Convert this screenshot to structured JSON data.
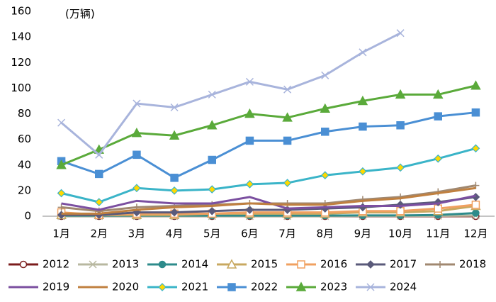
{
  "chart_data": {
    "type": "line",
    "annotation": "(万辆)",
    "categories": [
      "1月",
      "2月",
      "3月",
      "4月",
      "5月",
      "6月",
      "7月",
      "8月",
      "9月",
      "10月",
      "11月",
      "12月"
    ],
    "ylim": [
      0,
      160
    ],
    "yticks": [
      0,
      20,
      40,
      60,
      80,
      100,
      120,
      140,
      160
    ],
    "series": [
      {
        "name": "2012",
        "color": "#7b1c1c",
        "marker": "circle-open",
        "values": [
          0,
          0,
          0,
          0,
          0,
          0,
          0,
          0,
          0,
          0,
          0,
          0
        ]
      },
      {
        "name": "2013",
        "color": "#b8b8a0",
        "marker": "x",
        "values": [
          0.1,
          0.1,
          0.1,
          0.1,
          0.1,
          0.1,
          0.1,
          0.1,
          0.2,
          0.2,
          0.3,
          0.5
        ]
      },
      {
        "name": "2014",
        "color": "#2e8b8b",
        "marker": "circle",
        "values": [
          0.5,
          0.5,
          0.5,
          0.5,
          0.5,
          0.5,
          0.5,
          0.5,
          0.6,
          0.6,
          1,
          2.5
        ]
      },
      {
        "name": "2015",
        "color": "#c8a860",
        "marker": "triangle-open",
        "values": [
          1,
          1,
          1,
          1,
          2,
          2,
          2,
          2,
          3,
          3,
          4,
          8
        ]
      },
      {
        "name": "2016",
        "color": "#f0a060",
        "marker": "square-open",
        "values": [
          3,
          1,
          2,
          2,
          2,
          3,
          3,
          3,
          4,
          4,
          6,
          9
        ]
      },
      {
        "name": "2017",
        "color": "#5a5a7a",
        "marker": "diamond",
        "values": [
          1,
          1,
          3,
          3,
          4,
          5,
          5,
          6,
          7,
          9,
          11,
          15
        ]
      },
      {
        "name": "2018",
        "color": "#a08870",
        "marker": "plus",
        "values": [
          7,
          4,
          7,
          8,
          9,
          10,
          10,
          10,
          13,
          15,
          19,
          24
        ]
      },
      {
        "name": "2019",
        "color": "#7b4fa0",
        "marker": "none",
        "values": [
          10,
          5,
          12,
          10,
          10,
          15,
          6,
          7,
          8,
          8,
          10,
          16
        ]
      },
      {
        "name": "2020",
        "color": "#c08040",
        "marker": "none",
        "values": [
          2,
          2,
          5,
          7,
          8,
          10,
          9,
          9,
          12,
          14,
          18,
          22
        ]
      },
      {
        "name": "2021",
        "color": "#3ab4c8",
        "marker": "diamond-yellow",
        "values": [
          18,
          11,
          22,
          20,
          21,
          25,
          26,
          32,
          35,
          38,
          45,
          53
        ]
      },
      {
        "name": "2022",
        "color": "#4a8fd4",
        "marker": "square",
        "values": [
          43,
          33,
          48,
          30,
          44,
          59,
          59,
          66,
          70,
          71,
          78,
          81
        ]
      },
      {
        "name": "2023",
        "color": "#5aaa3a",
        "marker": "triangle",
        "values": [
          40,
          52,
          65,
          63,
          71,
          80,
          77,
          84,
          90,
          95,
          95,
          102
        ]
      },
      {
        "name": "2024",
        "color": "#a8b4dc",
        "marker": "x",
        "values": [
          73,
          48,
          88,
          85,
          95,
          105,
          99,
          110,
          128,
          143,
          null,
          null
        ]
      }
    ]
  }
}
